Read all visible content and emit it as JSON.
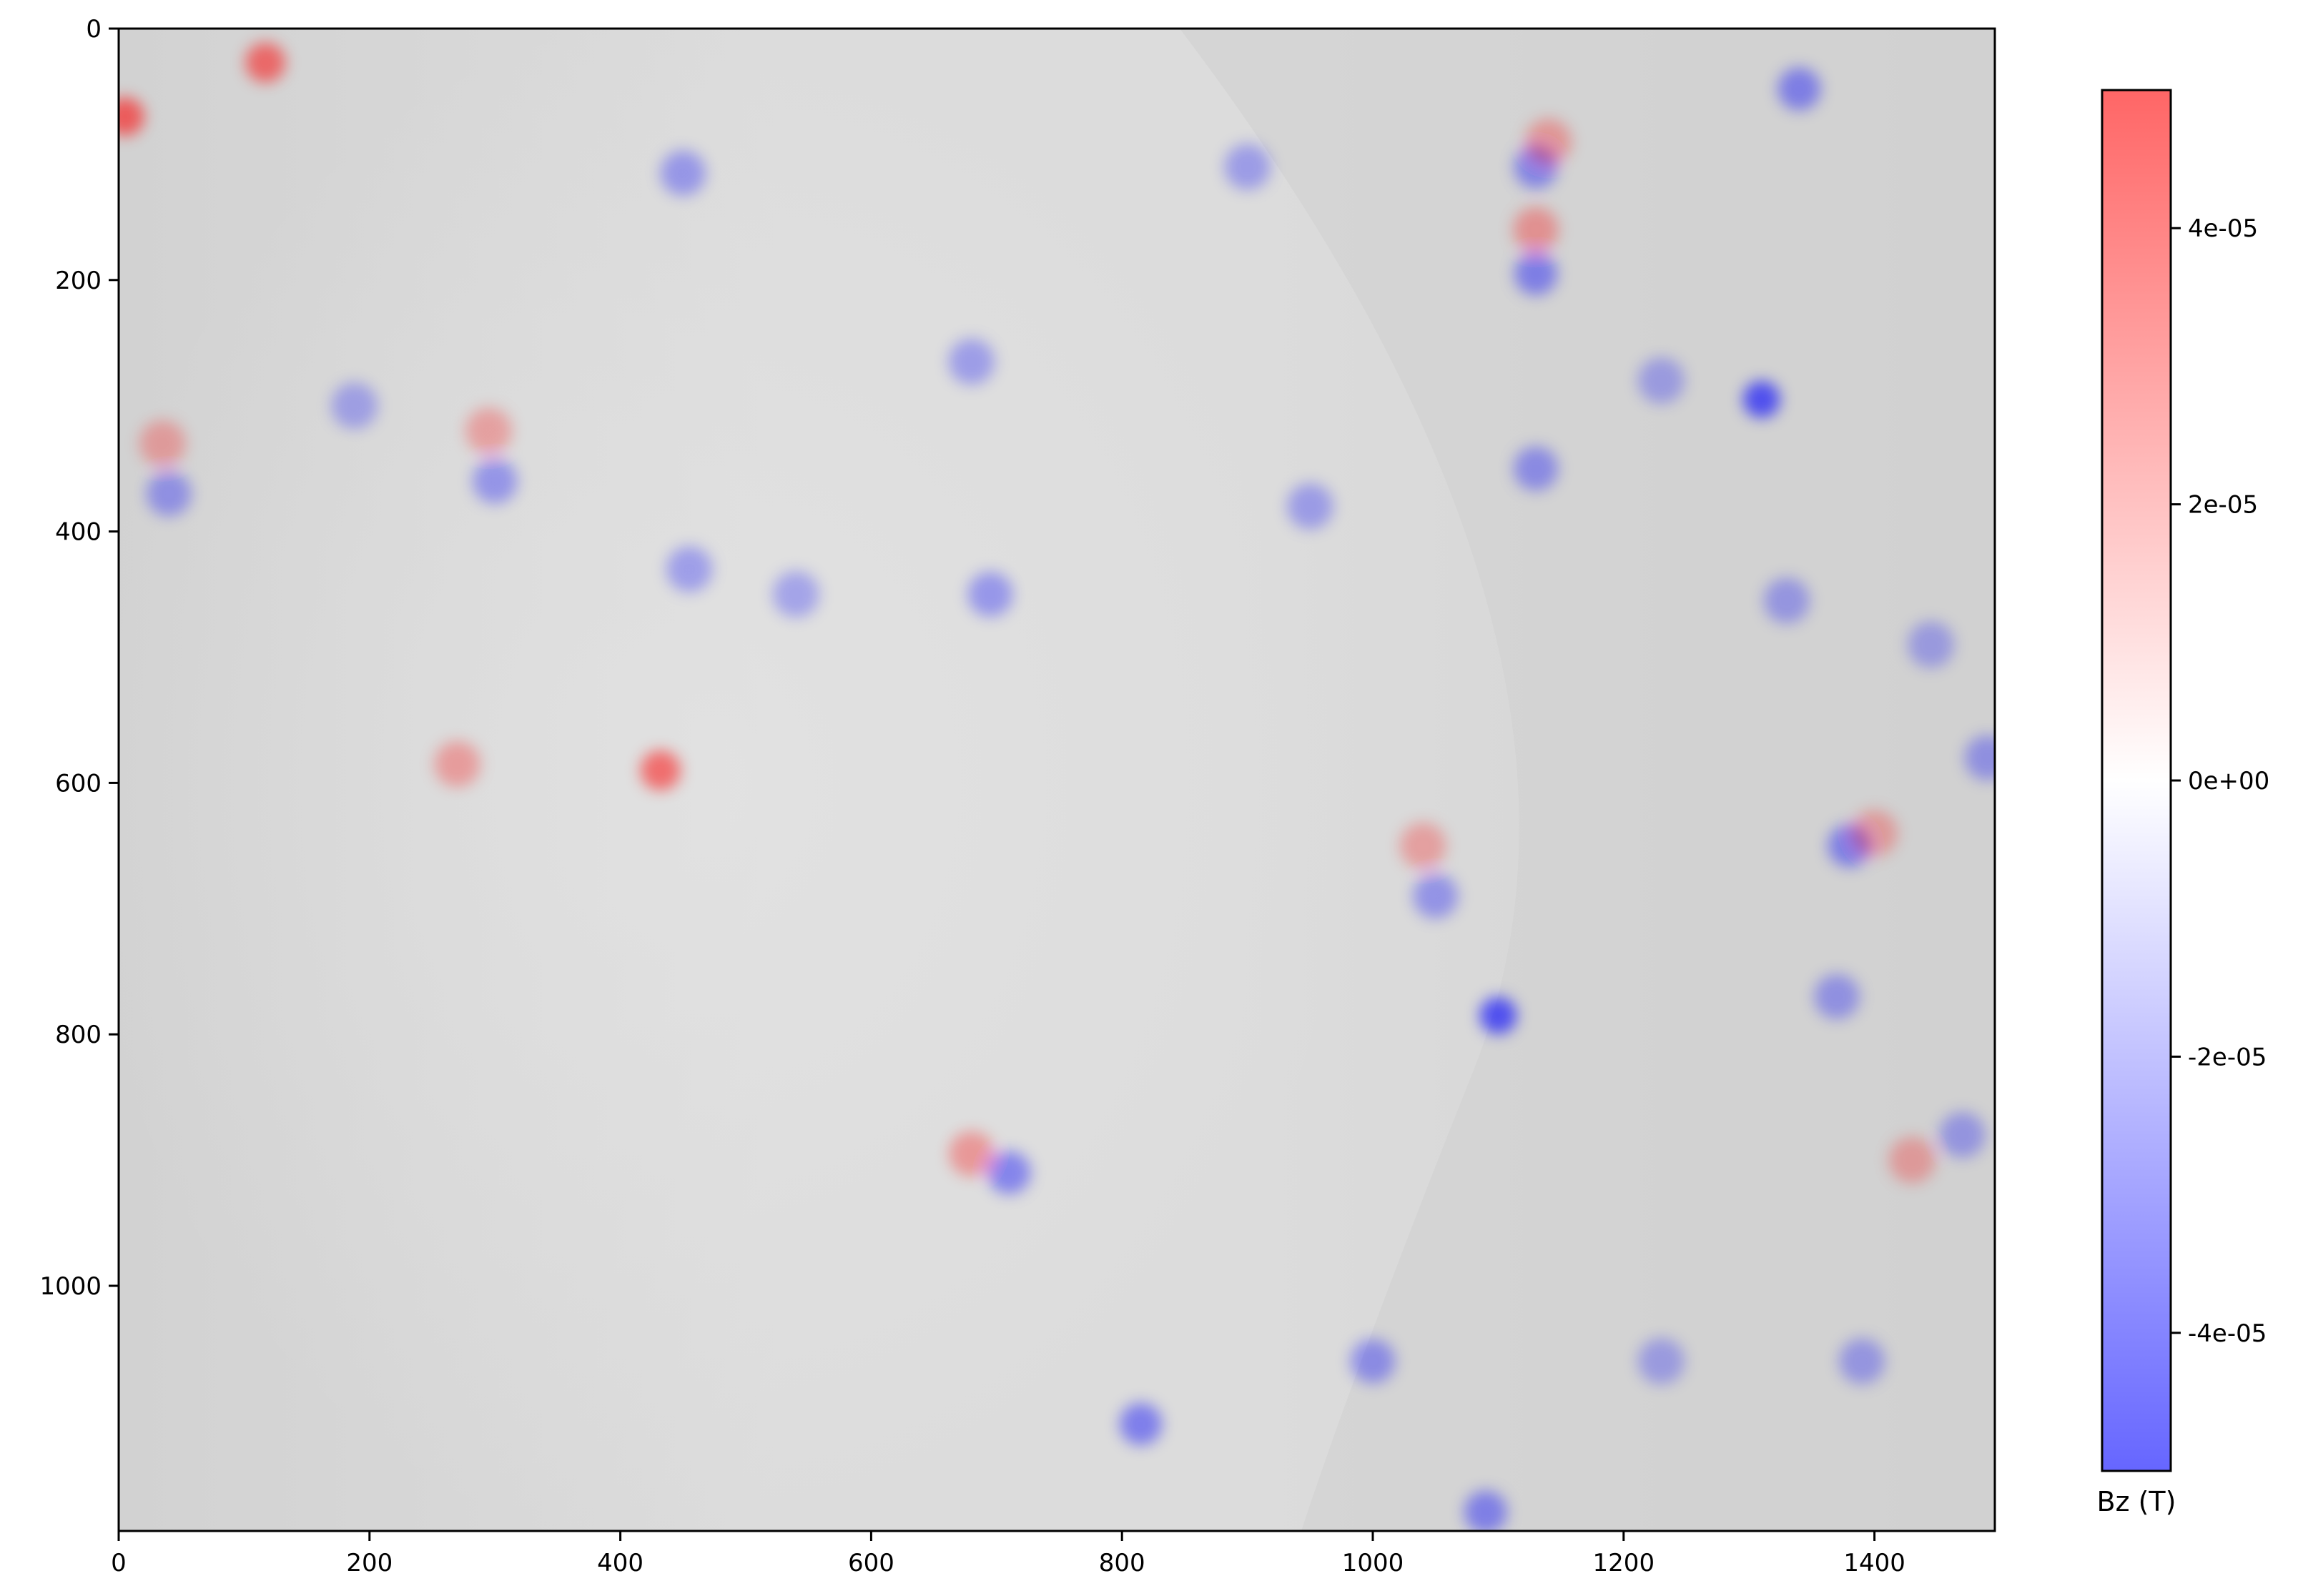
{
  "chart_data": {
    "type": "heatmap",
    "title": "",
    "xlabel": "",
    "ylabel": "",
    "xlim": [
      0,
      1496
    ],
    "ylim": [
      1195,
      0
    ],
    "x_ticks": [
      0,
      200,
      400,
      600,
      800,
      1000,
      1200,
      1400
    ],
    "y_ticks": [
      0,
      200,
      400,
      600,
      800,
      1000
    ],
    "x_tick_labels": [
      "0",
      "200",
      "400",
      "600",
      "800",
      "1000",
      "1200",
      "1400"
    ],
    "y_tick_labels": [
      "0",
      "200",
      "400",
      "600",
      "800",
      "1000"
    ],
    "grid": false,
    "background_colors": [
      "#d2d2d2",
      "#dcdcdc",
      "#e4e4e4"
    ],
    "colorbar": {
      "label": "Bz (T)",
      "colormap": "bwr",
      "vmin": -5e-05,
      "vmax": 5e-05,
      "ticks": [
        4e-05,
        2e-05,
        0,
        -2e-05,
        -4e-05
      ],
      "tick_labels": [
        "4e-05",
        "2e-05",
        "0e+00",
        "-2e-05",
        "-4e-05"
      ],
      "low_color": "#0000ff",
      "mid_color": "#ffffff",
      "high_color": "#ff0000"
    },
    "spots": [
      {
        "x": 5,
        "y": 70,
        "bz": 3.5e-05
      },
      {
        "x": 117,
        "y": 27,
        "bz": 3e-05
      },
      {
        "x": 450,
        "y": 115,
        "bz": -1.2e-05
      },
      {
        "x": 35,
        "y": 330,
        "bz": 8e-06
      },
      {
        "x": 40,
        "y": 370,
        "bz": -1.3e-05
      },
      {
        "x": 188,
        "y": 300,
        "bz": -8e-06
      },
      {
        "x": 295,
        "y": 320,
        "bz": 8e-06
      },
      {
        "x": 300,
        "y": 360,
        "bz": -1.3e-05
      },
      {
        "x": 270,
        "y": 585,
        "bz": 1e-05
      },
      {
        "x": 432,
        "y": 590,
        "bz": 3e-05
      },
      {
        "x": 455,
        "y": 430,
        "bz": -1e-05
      },
      {
        "x": 540,
        "y": 450,
        "bz": -8e-06
      },
      {
        "x": 680,
        "y": 265,
        "bz": -1e-05
      },
      {
        "x": 695,
        "y": 450,
        "bz": -1.3e-05
      },
      {
        "x": 680,
        "y": 895,
        "bz": 1.2e-05
      },
      {
        "x": 710,
        "y": 910,
        "bz": -2e-05
      },
      {
        "x": 900,
        "y": 110,
        "bz": -1e-05
      },
      {
        "x": 950,
        "y": 380,
        "bz": -1e-05
      },
      {
        "x": 1050,
        "y": 690,
        "bz": -1.3e-05
      },
      {
        "x": 1040,
        "y": 650,
        "bz": 8e-06
      },
      {
        "x": 1100,
        "y": 785,
        "bz": -4e-05
      },
      {
        "x": 1000,
        "y": 1060,
        "bz": -1.5e-05
      },
      {
        "x": 815,
        "y": 1110,
        "bz": -2.2e-05
      },
      {
        "x": 1090,
        "y": 1180,
        "bz": -2e-05
      },
      {
        "x": 1130,
        "y": 110,
        "bz": -1.8e-05
      },
      {
        "x": 1140,
        "y": 90,
        "bz": 1e-05
      },
      {
        "x": 1130,
        "y": 160,
        "bz": 1.2e-05
      },
      {
        "x": 1130,
        "y": 195,
        "bz": -2e-05
      },
      {
        "x": 1130,
        "y": 350,
        "bz": -1.5e-05
      },
      {
        "x": 1230,
        "y": 280,
        "bz": -8e-06
      },
      {
        "x": 1310,
        "y": 295,
        "bz": -4e-05
      },
      {
        "x": 1340,
        "y": 48,
        "bz": -2e-05
      },
      {
        "x": 1380,
        "y": 650,
        "bz": -2e-05
      },
      {
        "x": 1400,
        "y": 640,
        "bz": 8e-06
      },
      {
        "x": 1370,
        "y": 770,
        "bz": -1.2e-05
      },
      {
        "x": 1430,
        "y": 900,
        "bz": 8e-06
      },
      {
        "x": 1470,
        "y": 880,
        "bz": -1e-05
      },
      {
        "x": 1490,
        "y": 580,
        "bz": -1.2e-05
      },
      {
        "x": 1445,
        "y": 490,
        "bz": -8e-06
      },
      {
        "x": 1330,
        "y": 455,
        "bz": -1e-05
      },
      {
        "x": 1390,
        "y": 1060,
        "bz": -1e-05
      },
      {
        "x": 1230,
        "y": 1060,
        "bz": -8e-06
      }
    ]
  }
}
